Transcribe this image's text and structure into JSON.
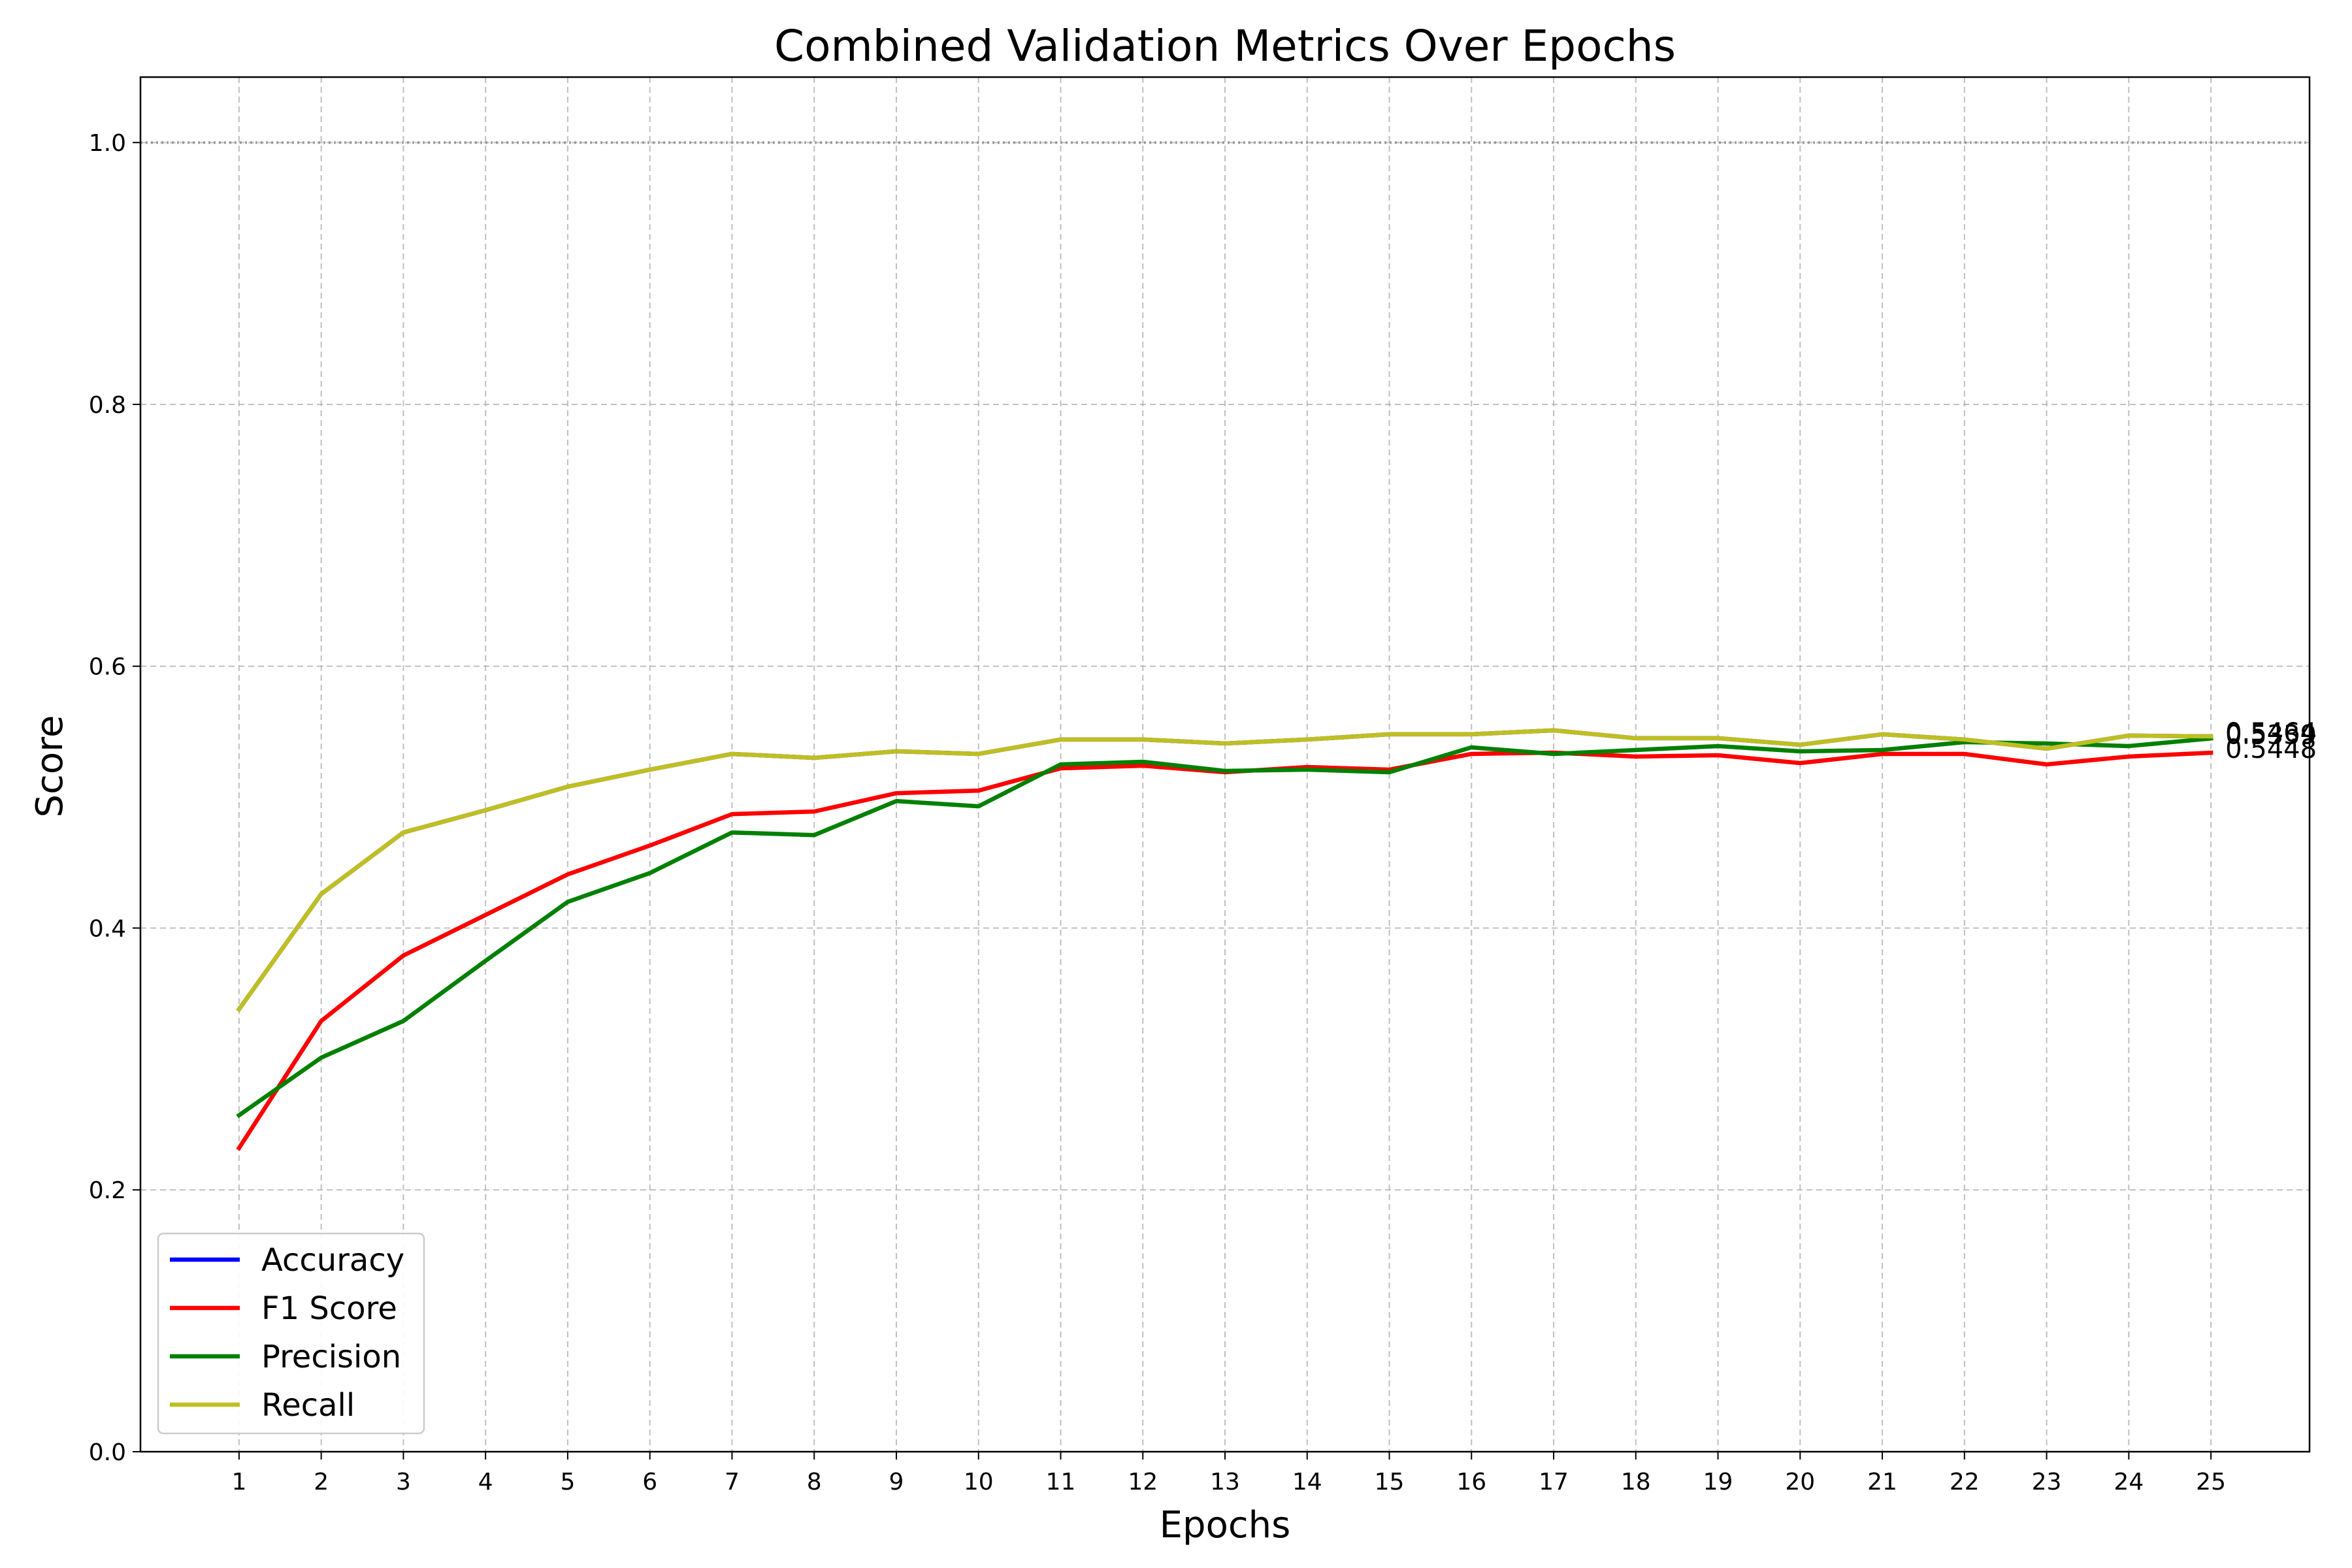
{
  "chart_data": {
    "type": "line",
    "title": "Combined Validation Metrics Over Epochs",
    "xlabel": "Epochs",
    "ylabel": "Score",
    "x": [
      1,
      2,
      3,
      4,
      5,
      6,
      7,
      8,
      9,
      10,
      11,
      12,
      13,
      14,
      15,
      16,
      17,
      18,
      19,
      20,
      21,
      22,
      23,
      24,
      25
    ],
    "xlim": [
      -0.2,
      26.2
    ],
    "ylim": [
      0.0,
      1.05
    ],
    "yticks": [
      "0.0",
      "0.2",
      "0.4",
      "0.6",
      "0.8",
      "1.0"
    ],
    "grid": true,
    "reference_line": {
      "y": 1.0,
      "style": "dotted",
      "color": "#888888"
    },
    "legend_position": "lower-left",
    "series": [
      {
        "name": "Accuracy",
        "color": "#0000ff",
        "values": [
          0.338,
          0.426,
          0.473,
          0.49,
          0.508,
          0.521,
          0.533,
          0.53,
          0.535,
          0.533,
          0.544,
          0.544,
          0.541,
          0.544,
          0.548,
          0.548,
          0.551,
          0.545,
          0.545,
          0.54,
          0.548,
          0.544,
          0.537,
          0.547,
          0.5464
        ]
      },
      {
        "name": "F1 Score",
        "color": "#ff0000",
        "values": [
          0.232,
          0.329,
          0.379,
          0.41,
          0.441,
          0.463,
          0.487,
          0.489,
          0.503,
          0.505,
          0.522,
          0.524,
          0.519,
          0.523,
          0.521,
          0.533,
          0.534,
          0.531,
          0.532,
          0.526,
          0.533,
          0.533,
          0.525,
          0.531,
          0.5339
        ]
      },
      {
        "name": "Precision",
        "color": "#008000",
        "values": [
          0.257,
          0.301,
          0.329,
          0.375,
          0.42,
          0.442,
          0.473,
          0.471,
          0.497,
          0.493,
          0.525,
          0.527,
          0.52,
          0.521,
          0.519,
          0.538,
          0.533,
          0.536,
          0.539,
          0.535,
          0.536,
          0.542,
          0.541,
          0.539,
          0.5448
        ]
      },
      {
        "name": "Recall",
        "color": "#bfbf21",
        "values": [
          0.338,
          0.426,
          0.473,
          0.49,
          0.508,
          0.521,
          0.533,
          0.53,
          0.535,
          0.533,
          0.544,
          0.544,
          0.541,
          0.544,
          0.548,
          0.548,
          0.551,
          0.545,
          0.545,
          0.54,
          0.548,
          0.544,
          0.537,
          0.547,
          0.5464
        ]
      }
    ],
    "end_labels": [
      "0.5464",
      "0.5448",
      "0.5339",
      "0.5464"
    ]
  }
}
